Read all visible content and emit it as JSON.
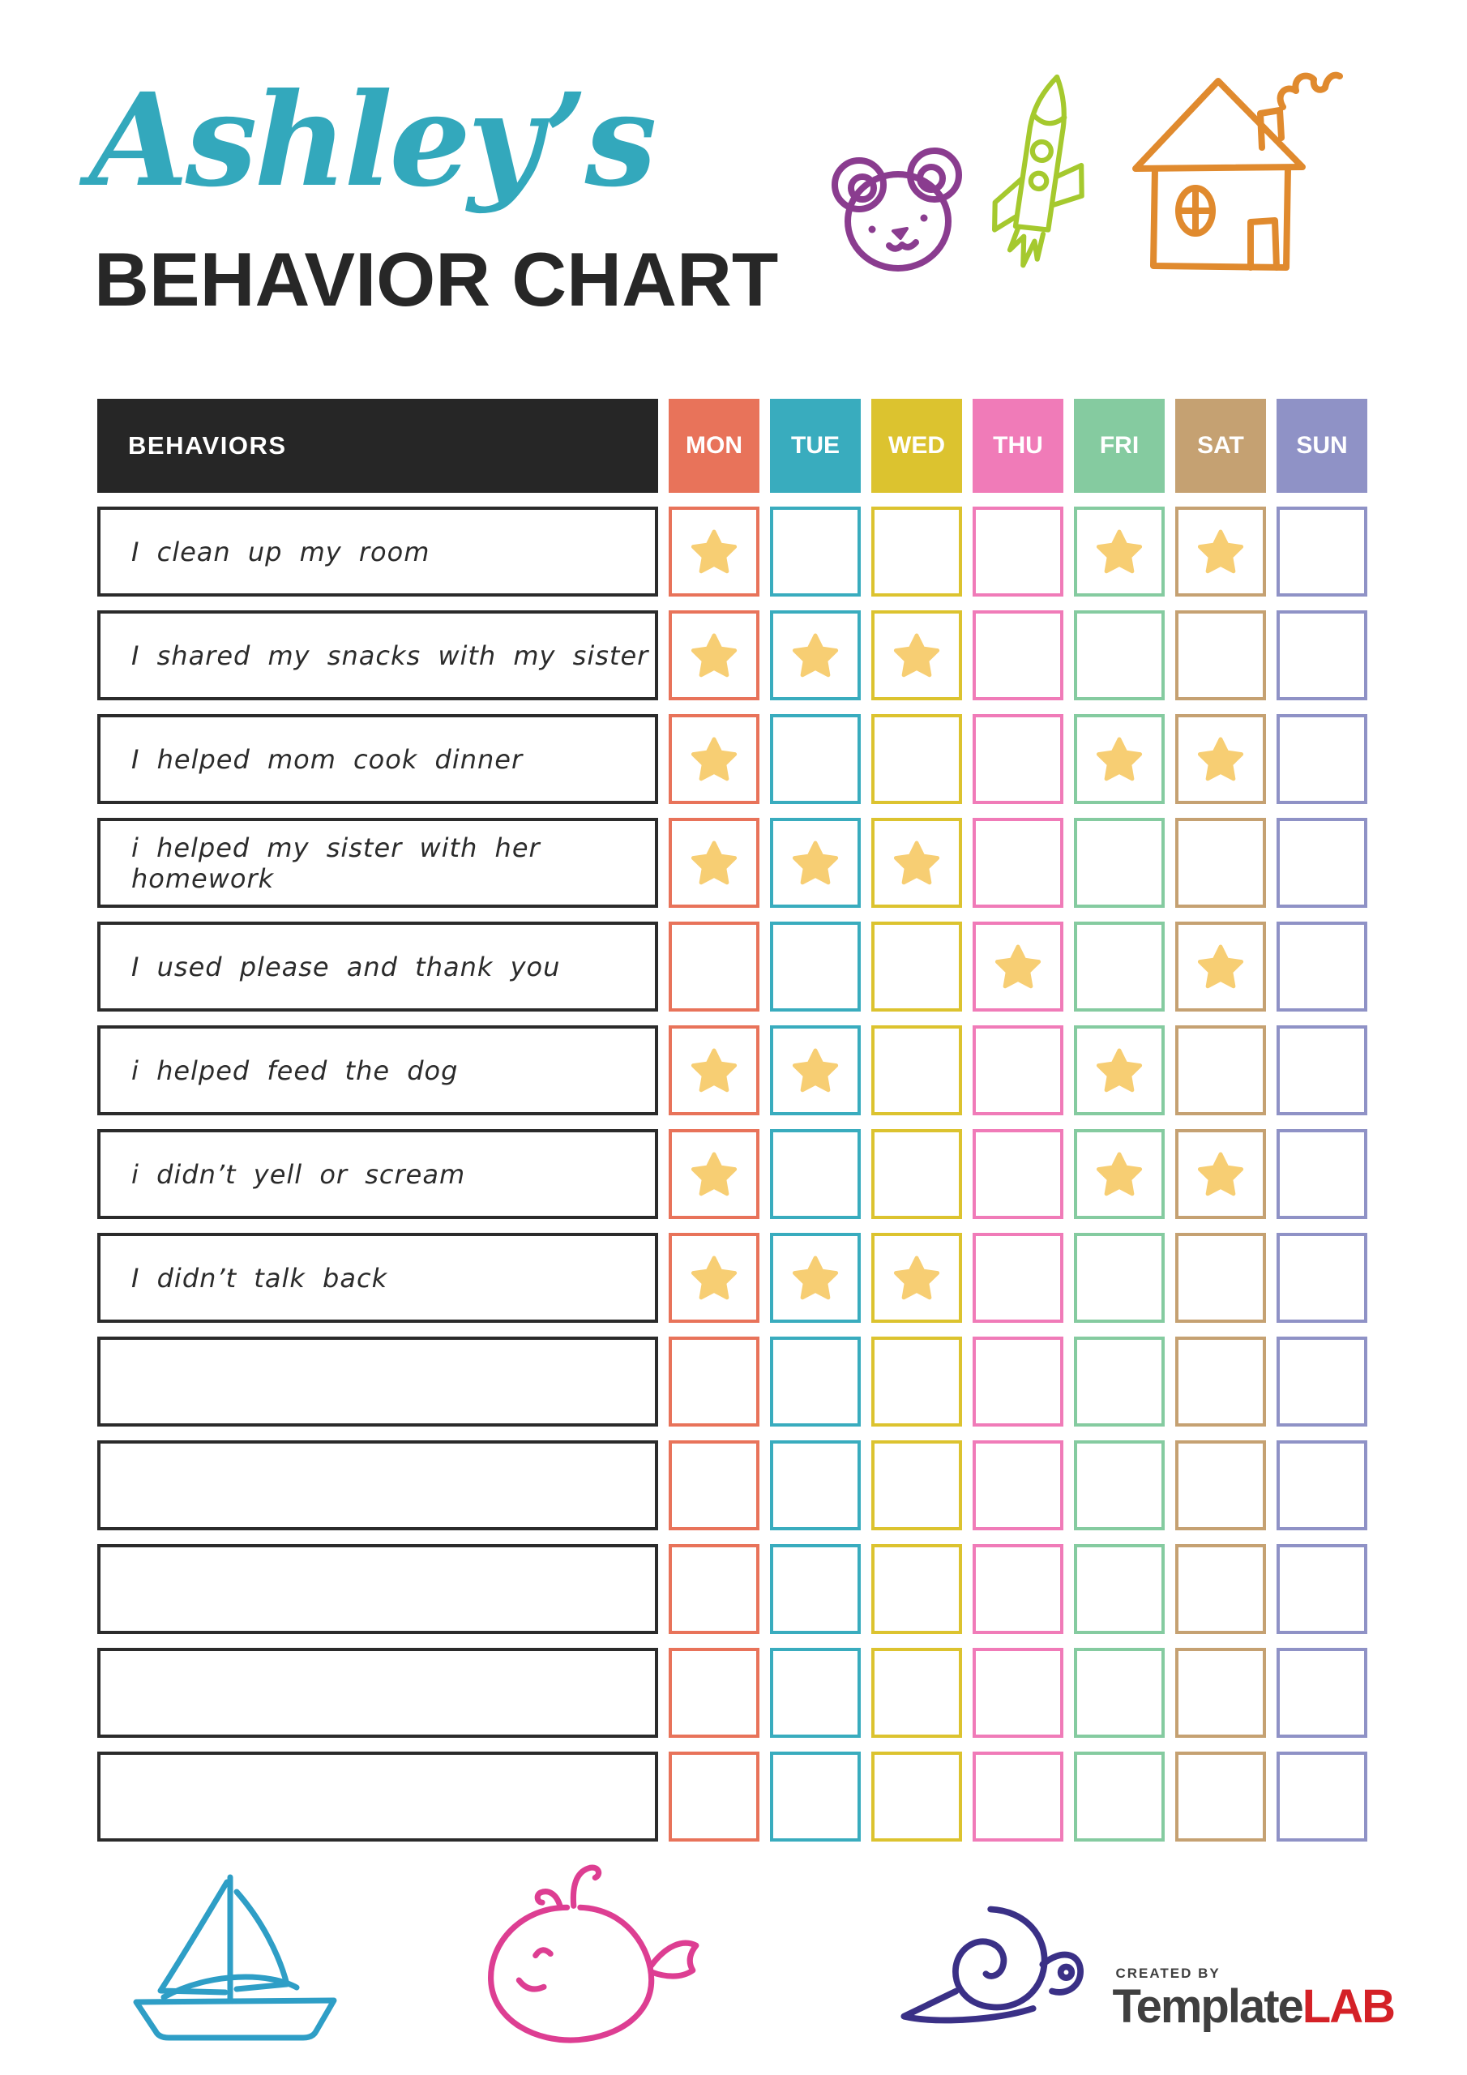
{
  "header": {
    "name": "Ashley’s",
    "name_color": "#33A8BC",
    "title": "BEHAVIOR CHART",
    "title_color": "#272727"
  },
  "decorations": {
    "top": [
      {
        "name": "bear-icon",
        "color": "#8A3C8F"
      },
      {
        "name": "rocket-icon",
        "color": "#A5C92E"
      },
      {
        "name": "house-icon",
        "color": "#E08A2E"
      }
    ],
    "bottom": [
      {
        "name": "sailboat-icon",
        "color": "#2E9EC6"
      },
      {
        "name": "whale-icon",
        "color": "#DD3E92"
      },
      {
        "name": "snail-icon",
        "color": "#3A3086"
      }
    ]
  },
  "table": {
    "behaviors_label": "BEHAVIORS",
    "header_bg": "#262626",
    "row_border": "#2B2B2B",
    "star_color": "#F7CE73",
    "days": [
      {
        "label": "MON",
        "color": "#E8735A"
      },
      {
        "label": "TUE",
        "color": "#39ACBE"
      },
      {
        "label": "WED",
        "color": "#DCC32F"
      },
      {
        "label": "THU",
        "color": "#F07BB8"
      },
      {
        "label": "FRI",
        "color": "#85CBA0"
      },
      {
        "label": "SAT",
        "color": "#C5A172"
      },
      {
        "label": "SUN",
        "color": "#8F92C6"
      }
    ],
    "rows": [
      {
        "behavior": "I clean up my room",
        "stars": [
          "MON",
          "FRI",
          "SAT"
        ]
      },
      {
        "behavior": "I shared my snacks with my sister",
        "stars": [
          "MON",
          "TUE",
          "WED"
        ]
      },
      {
        "behavior": "I helped mom cook dinner",
        "stars": [
          "MON",
          "FRI",
          "SAT"
        ]
      },
      {
        "behavior": "i helped my sister with her homework",
        "stars": [
          "MON",
          "TUE",
          "WED"
        ]
      },
      {
        "behavior": "I used please and thank you",
        "stars": [
          "THU",
          "SAT"
        ]
      },
      {
        "behavior": "i helped feed the dog",
        "stars": [
          "MON",
          "TUE",
          "FRI"
        ]
      },
      {
        "behavior": "i didn’t yell or scream",
        "stars": [
          "MON",
          "FRI",
          "SAT"
        ]
      },
      {
        "behavior": "I didn’t talk back",
        "stars": [
          "MON",
          "TUE",
          "WED"
        ]
      },
      {
        "behavior": "",
        "stars": []
      },
      {
        "behavior": "",
        "stars": []
      },
      {
        "behavior": "",
        "stars": []
      },
      {
        "behavior": "",
        "stars": []
      },
      {
        "behavior": "",
        "stars": []
      }
    ]
  },
  "footer": {
    "created_by": "CREATED BY",
    "brand_name": "Template",
    "brand_suffix": "LAB",
    "brand_color": "#3F3F3F",
    "accent_color": "#D42127"
  }
}
